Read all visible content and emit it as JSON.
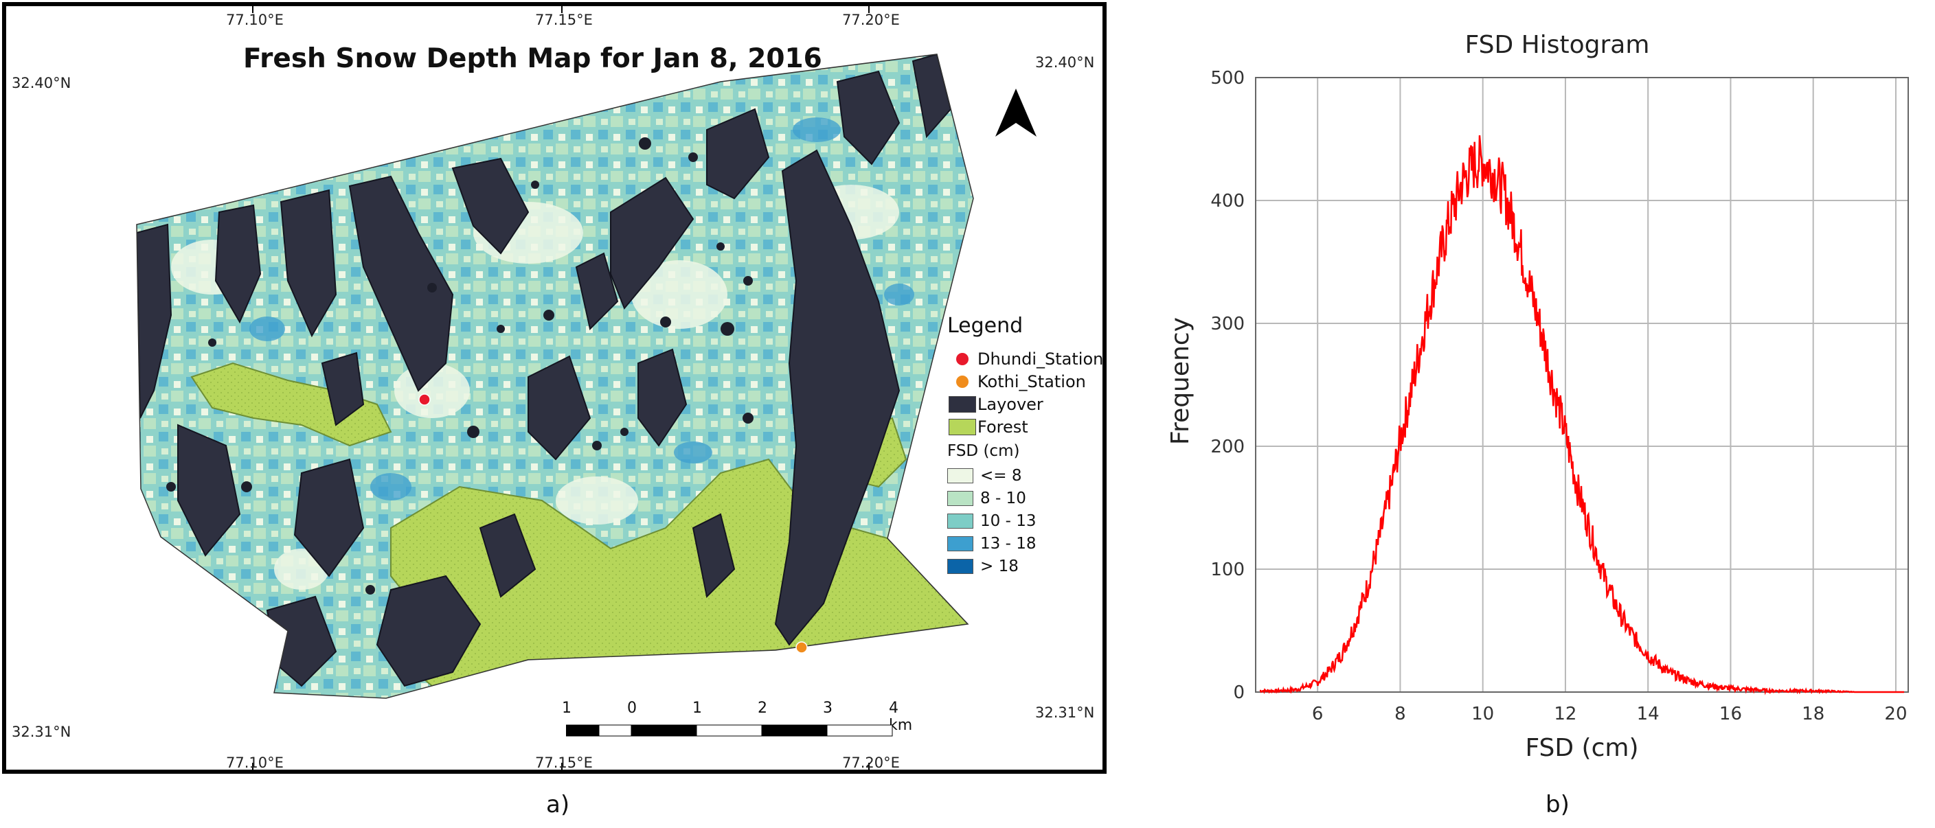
{
  "captions": {
    "a": "a)",
    "b": "b)"
  },
  "map": {
    "title": "Fresh Snow Depth Map for Jan 8, 2016",
    "coords": {
      "top": [
        "77.10°E",
        "77.15°E",
        "77.20°E"
      ],
      "bottom": [
        "77.10°E",
        "77.15°E",
        "77.20°E"
      ],
      "left": [
        "32.40°N",
        "32.31°N"
      ],
      "right": [
        "32.40°N",
        "32.31°N"
      ]
    },
    "legend": {
      "title": "Legend",
      "items": [
        {
          "label": "Dhundi_Station",
          "color": "#e8192c",
          "symbol": "dot"
        },
        {
          "label": "Kothi_Station",
          "color": "#f08c1c",
          "symbol": "dot"
        },
        {
          "label": "Layover",
          "color": "#2e3040",
          "symbol": "box"
        },
        {
          "label": "Forest",
          "color": "#b6d65a",
          "symbol": "box"
        }
      ],
      "fsd_title": "FSD (cm)",
      "fsd_classes": [
        {
          "label": "<= 8",
          "color": "#eef7e6"
        },
        {
          "label": "8 - 10",
          "color": "#b9e3c4"
        },
        {
          "label": "10 - 13",
          "color": "#7dcdc6"
        },
        {
          "label": "13 - 18",
          "color": "#3d9fcf"
        },
        {
          "label": "> 18",
          "color": "#0b64a8"
        }
      ]
    },
    "scalebar": {
      "labels": [
        "1",
        "0",
        "1",
        "2",
        "3",
        "4 km"
      ]
    },
    "north_arrow": "north-arrow-icon"
  },
  "chart_data": {
    "type": "line",
    "title": "FSD Histogram",
    "xlabel": "FSD (cm)",
    "ylabel": "Frequency",
    "xlim": [
      4.5,
      20.3
    ],
    "ylim": [
      0,
      500
    ],
    "xticks": [
      6,
      8,
      10,
      12,
      14,
      16,
      18,
      20
    ],
    "yticks": [
      0,
      100,
      200,
      300,
      400,
      500
    ],
    "grid": true,
    "series": [
      {
        "color": "#ff0000",
        "x": [
          4.6,
          5.0,
          5.5,
          6.0,
          6.3,
          6.6,
          6.9,
          7.2,
          7.5,
          7.8,
          8.0,
          8.3,
          8.6,
          8.9,
          9.2,
          9.5,
          9.8,
          10.0,
          10.2,
          10.5,
          10.8,
          11.1,
          11.4,
          11.7,
          12.0,
          12.3,
          12.6,
          12.9,
          13.2,
          13.5,
          13.8,
          14.1,
          14.5,
          15.0,
          15.5,
          16.0,
          16.5,
          17.0,
          18.0,
          19.0,
          20.0,
          20.2
        ],
        "y": [
          1,
          1,
          2,
          8,
          18,
          32,
          55,
          85,
          125,
          170,
          205,
          250,
          300,
          345,
          385,
          415,
          430,
          432,
          425,
          408,
          375,
          335,
          295,
          250,
          210,
          165,
          130,
          97,
          72,
          52,
          38,
          27,
          16,
          9,
          5,
          3,
          2,
          1,
          1,
          0,
          0,
          0
        ]
      }
    ]
  }
}
